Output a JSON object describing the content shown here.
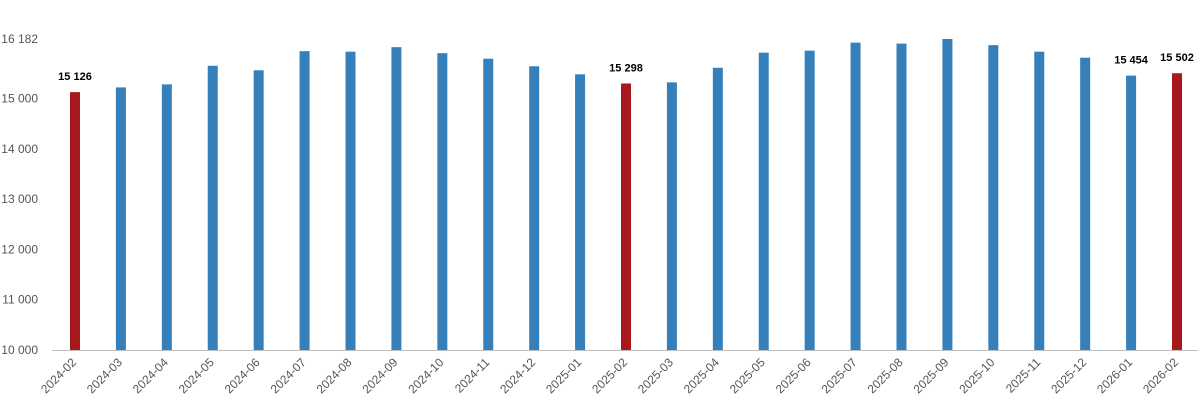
{
  "chart_data": {
    "type": "bar",
    "categories": [
      "2024-02",
      "2024-03",
      "2024-04",
      "2024-05",
      "2024-06",
      "2024-07",
      "2024-08",
      "2024-09",
      "2024-10",
      "2024-11",
      "2024-12",
      "2025-01",
      "2025-02",
      "2025-03",
      "2025-04",
      "2025-05",
      "2025-06",
      "2025-07",
      "2025-08",
      "2025-09",
      "2025-10",
      "2025-11",
      "2025-12",
      "2026-01",
      "2026-02"
    ],
    "values": [
      15126,
      15220,
      15280,
      15650,
      15560,
      15940,
      15930,
      16020,
      15900,
      15790,
      15640,
      15480,
      15298,
      15320,
      15610,
      15910,
      15950,
      16110,
      16090,
      16182,
      16060,
      15930,
      15810,
      15454,
      15502
    ],
    "highlighted": [
      true,
      false,
      false,
      false,
      false,
      false,
      false,
      false,
      false,
      false,
      false,
      false,
      true,
      false,
      false,
      false,
      false,
      false,
      false,
      false,
      false,
      false,
      false,
      false,
      true
    ],
    "data_labels": [
      "15 126",
      "",
      "",
      "",
      "",
      "",
      "",
      "",
      "",
      "",
      "",
      "",
      "15 298",
      "",
      "",
      "",
      "",
      "",
      "",
      "",
      "",
      "",
      "",
      "15 454",
      "15 502"
    ],
    "y_ticks": [
      10000,
      11000,
      12000,
      13000,
      14000,
      15000,
      16182
    ],
    "y_tick_labels": [
      "10 000",
      "11 000",
      "12 000",
      "13 000",
      "14 000",
      "15 000",
      "16 182"
    ],
    "ylim": [
      10000,
      16182
    ],
    "colors": {
      "normal": "#3580BB",
      "highlight": "#A8191E",
      "axis": "#BFBFBF"
    },
    "grid": false,
    "title": "",
    "xlabel": "",
    "ylabel": ""
  }
}
